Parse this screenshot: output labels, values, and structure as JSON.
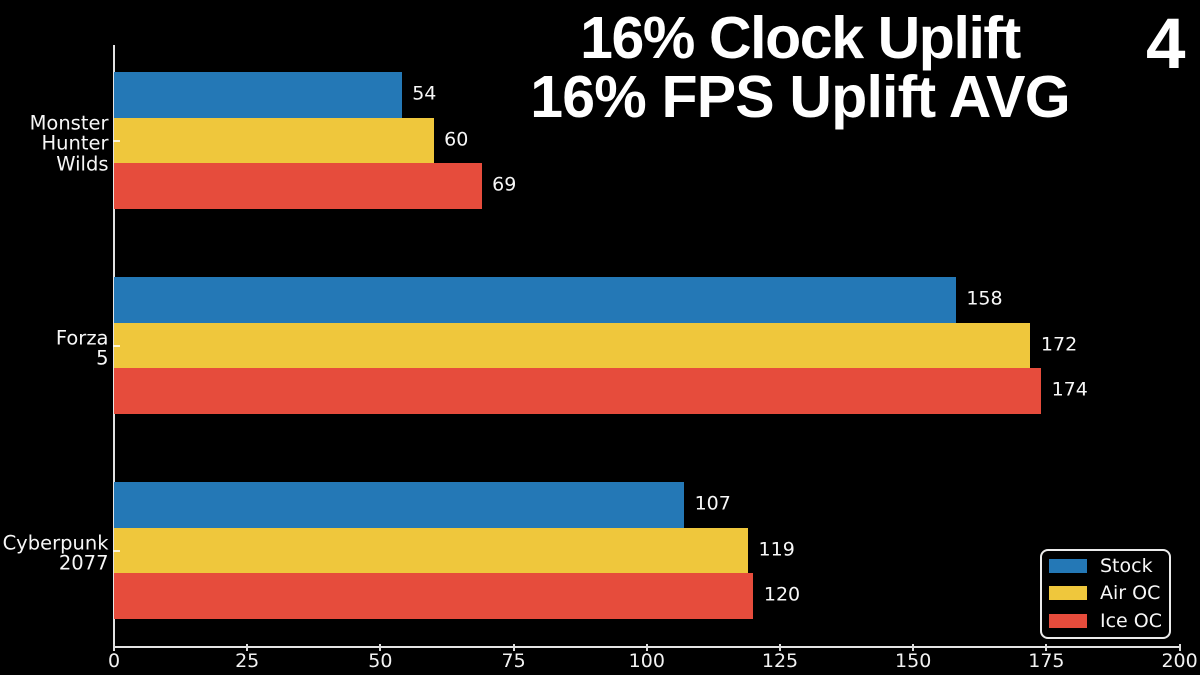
{
  "slide_number": "4",
  "chart_data": {
    "type": "bar",
    "orientation": "horizontal",
    "title": "16% Clock Uplift 16% FPS Uplift AVG",
    "title_line1": "16% Clock Uplift",
    "title_line2": "16% FPS Uplift AVG",
    "categories": [
      "Monster Hunter Wilds",
      "Forza 5",
      "Cyberpunk 2077"
    ],
    "category_label_lines": [
      [
        "Monster",
        "Hunter",
        "Wilds"
      ],
      [
        "Forza",
        "5"
      ],
      [
        "Cyberpunk",
        "2077"
      ]
    ],
    "series": [
      {
        "name": "Stock",
        "color": "#2478b6",
        "values": [
          54,
          158,
          107
        ]
      },
      {
        "name": "Air OC",
        "color": "#efc73c",
        "values": [
          60,
          172,
          119
        ]
      },
      {
        "name": "Ice OC",
        "color": "#e64c3c",
        "values": [
          69,
          174,
          120
        ]
      }
    ],
    "xlim": [
      0,
      200
    ],
    "xticks": [
      0,
      25,
      50,
      75,
      100,
      125,
      150,
      175,
      200
    ],
    "ylabel": "",
    "xlabel": "",
    "grid": false,
    "legend_position": "lower right",
    "background_color": "#000000",
    "text_color": "#ffffff",
    "axis_color": "#e3e3e3"
  }
}
